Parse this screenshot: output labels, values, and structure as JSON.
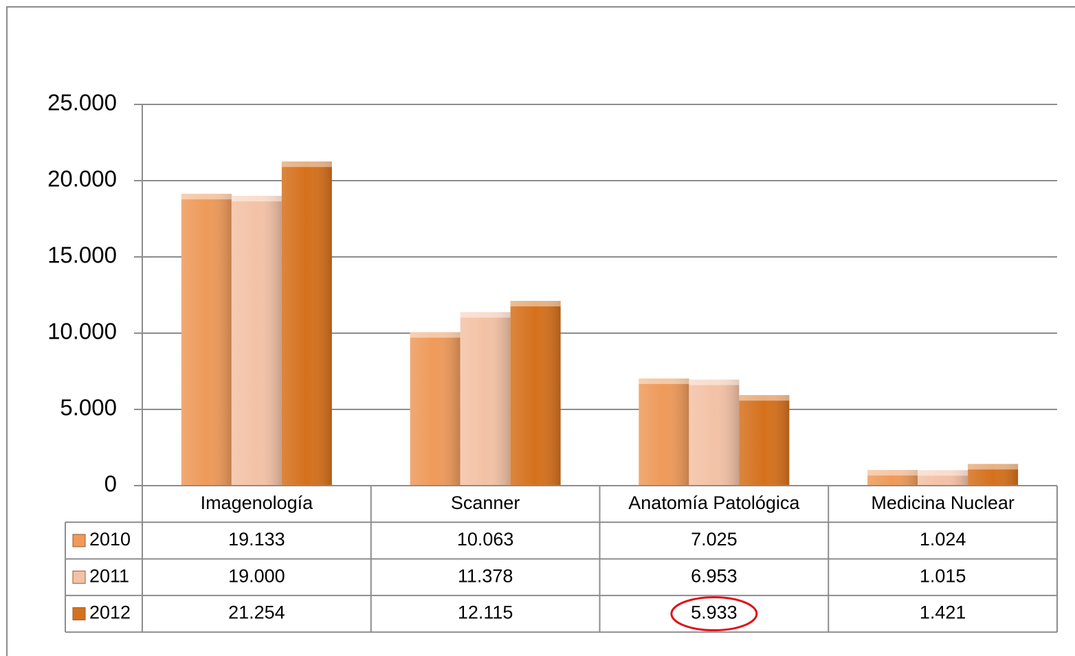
{
  "chart_data": {
    "type": "bar",
    "categories": [
      "Imagenología",
      "Scanner",
      "Anatomía Patológica",
      "Medicina Nuclear"
    ],
    "series": [
      {
        "name": "2010",
        "color": "#ee9a5a",
        "values": [
          19133,
          10063,
          7025,
          1024
        ],
        "value_labels": [
          "19.133",
          "10.063",
          "7.025",
          "1.024"
        ]
      },
      {
        "name": "2011",
        "color": "#f3c2a6",
        "values": [
          19000,
          11378,
          6953,
          1015
        ],
        "value_labels": [
          "19.000",
          "11.378",
          "6.953",
          "1.015"
        ]
      },
      {
        "name": "2012",
        "color": "#d5711d",
        "values": [
          21254,
          12115,
          5933,
          1421
        ],
        "value_labels": [
          "21.254",
          "12.115",
          "5.933",
          "1.421"
        ]
      }
    ],
    "ylim": [
      0,
      25000
    ],
    "yticks": [
      0,
      {
        "value": 5000,
        "label": "5.000"
      },
      {
        "value": 10000,
        "label": "10.000"
      },
      {
        "value": 15000,
        "label": "15.000"
      },
      {
        "value": 20000,
        "label": "20.000"
      },
      {
        "value": 25000,
        "label": "25.000"
      }
    ],
    "grid": true
  }
}
